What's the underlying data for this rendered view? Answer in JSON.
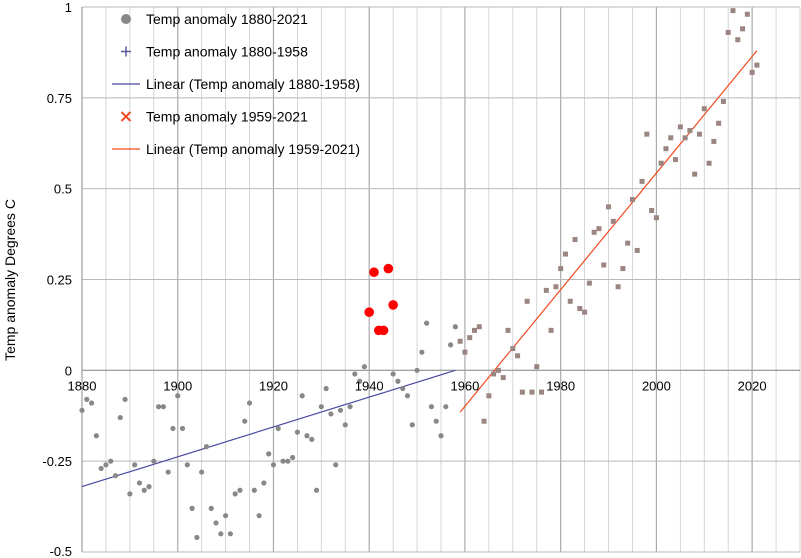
{
  "chart_data": {
    "type": "scatter",
    "title": "",
    "xlabel": "",
    "ylabel": "Temp anomaly Degrees C",
    "xlim": [
      1880,
      2030
    ],
    "ylim": [
      -0.5,
      1.0
    ],
    "x_ticks": [
      "1880",
      "1900",
      "1920",
      "1940",
      "1960",
      "1980",
      "2000",
      "2020"
    ],
    "y_ticks": [
      "1",
      "0.75",
      "0.5",
      "0.25",
      "0",
      "-0.25",
      "-0.5"
    ],
    "grid": true,
    "legend_position": "top-left",
    "colors": {
      "grey_points": "#888888",
      "brown_points": "#9b8580",
      "red_points": "#ff0000",
      "linear_1880_1958": "#4a4aa0",
      "linear_1959_2021": "#f04a20",
      "grid": "#cccccc",
      "axis": "#999999"
    },
    "legend": [
      {
        "label": "Temp anomaly 1880-2021",
        "marker": "circle"
      },
      {
        "label": "Temp anomaly 1880-1958",
        "marker": "plus"
      },
      {
        "label": "Linear (Temp anomaly 1880-1958)",
        "marker": "line-blue"
      },
      {
        "label": "Temp anomaly 1959-2021",
        "marker": "x"
      },
      {
        "label": "Linear (Temp anomaly 1959-2021)",
        "marker": "line-orange"
      }
    ],
    "series": [
      {
        "name": "Temp anomaly 1880-2021",
        "marker": "circle",
        "x": [
          1880,
          1881,
          1882,
          1883,
          1884,
          1885,
          1886,
          1887,
          1888,
          1889,
          1890,
          1891,
          1892,
          1893,
          1894,
          1895,
          1896,
          1897,
          1898,
          1899,
          1900,
          1901,
          1902,
          1903,
          1904,
          1905,
          1906,
          1907,
          1908,
          1909,
          1910,
          1911,
          1912,
          1913,
          1914,
          1915,
          1916,
          1917,
          1918,
          1919,
          1920,
          1921,
          1922,
          1923,
          1924,
          1925,
          1926,
          1927,
          1928,
          1929,
          1930,
          1931,
          1932,
          1933,
          1934,
          1935,
          1936,
          1937,
          1938,
          1939,
          1945,
          1946,
          1947,
          1948,
          1949,
          1950,
          1951,
          1952,
          1953,
          1954,
          1955,
          1956,
          1957,
          1958
        ],
        "y": [
          -0.11,
          -0.08,
          -0.09,
          -0.18,
          -0.27,
          -0.26,
          -0.25,
          -0.29,
          -0.13,
          -0.08,
          -0.34,
          -0.26,
          -0.31,
          -0.33,
          -0.32,
          -0.25,
          -0.1,
          -0.1,
          -0.28,
          -0.16,
          -0.07,
          -0.16,
          -0.26,
          -0.38,
          -0.46,
          -0.28,
          -0.21,
          -0.38,
          -0.42,
          -0.45,
          -0.4,
          -0.45,
          -0.34,
          -0.33,
          -0.14,
          -0.09,
          -0.33,
          -0.4,
          -0.31,
          -0.23,
          -0.26,
          -0.16,
          -0.25,
          -0.25,
          -0.24,
          -0.17,
          -0.07,
          -0.18,
          -0.19,
          -0.33,
          -0.1,
          -0.05,
          -0.12,
          -0.26,
          -0.11,
          -0.15,
          -0.1,
          -0.01,
          -0.03,
          0.01,
          -0.01,
          -0.03,
          -0.05,
          -0.07,
          -0.15,
          0.0,
          0.05,
          0.13,
          -0.1,
          -0.14,
          -0.18,
          -0.1,
          0.07,
          0.12
        ]
      },
      {
        "name": "Temp anomaly 1880-2021",
        "marker": "circle-red",
        "x": [
          1940,
          1941,
          1942,
          1943,
          1944,
          1945
        ],
        "y": [
          0.16,
          0.27,
          0.11,
          0.11,
          0.28,
          0.18
        ]
      },
      {
        "name": "Temp anomaly 1959-2021",
        "marker": "square",
        "x": [
          1959,
          1960,
          1961,
          1962,
          1963,
          1964,
          1965,
          1966,
          1967,
          1968,
          1969,
          1970,
          1971,
          1972,
          1973,
          1974,
          1975,
          1976,
          1977,
          1978,
          1979,
          1980,
          1981,
          1982,
          1983,
          1984,
          1985,
          1986,
          1987,
          1988,
          1989,
          1990,
          1991,
          1992,
          1993,
          1994,
          1995,
          1996,
          1997,
          1998,
          1999,
          2000,
          2001,
          2002,
          2003,
          2004,
          2005,
          2006,
          2007,
          2008,
          2009,
          2010,
          2011,
          2012,
          2013,
          2014,
          2015,
          2016,
          2017,
          2018,
          2019,
          2020,
          2021
        ],
        "y": [
          0.08,
          0.05,
          0.09,
          0.11,
          0.12,
          -0.14,
          -0.07,
          -0.01,
          0.0,
          -0.02,
          0.11,
          0.06,
          0.04,
          -0.06,
          0.19,
          -0.06,
          0.01,
          -0.06,
          0.22,
          0.11,
          0.23,
          0.28,
          0.32,
          0.19,
          0.36,
          0.17,
          0.16,
          0.24,
          0.38,
          0.39,
          0.29,
          0.45,
          0.41,
          0.23,
          0.28,
          0.35,
          0.47,
          0.33,
          0.52,
          0.65,
          0.44,
          0.42,
          0.57,
          0.61,
          0.64,
          0.58,
          0.67,
          0.64,
          0.66,
          0.54,
          0.65,
          0.72,
          0.57,
          0.63,
          0.68,
          0.74,
          0.93,
          0.99,
          0.91,
          0.94,
          0.98,
          0.82,
          0.84
        ]
      }
    ],
    "trendlines": [
      {
        "name": "Linear (Temp anomaly 1880-1958)",
        "x": [
          1880,
          1958
        ],
        "y": [
          -0.32,
          0.0
        ]
      },
      {
        "name": "Linear (Temp anomaly 1959-2021)",
        "x": [
          1959,
          2021
        ],
        "y": [
          -0.115,
          0.88
        ]
      }
    ]
  }
}
